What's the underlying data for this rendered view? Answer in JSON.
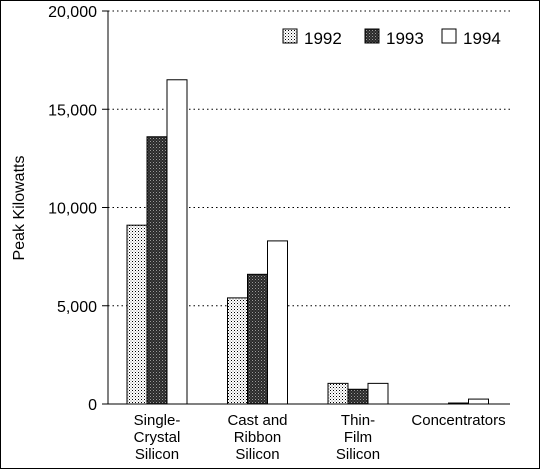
{
  "chart_data": {
    "type": "bar",
    "title": "",
    "xlabel": "",
    "ylabel": "Peak Kilowatts",
    "categories": [
      [
        "Single-",
        "Crystal",
        "Silicon"
      ],
      [
        "Cast and",
        "Ribbon",
        "Silicon"
      ],
      [
        "Thin-",
        "Film",
        "Silicon"
      ],
      [
        "Concentrators"
      ]
    ],
    "series": [
      {
        "name": "1992",
        "values": [
          9100,
          5400,
          1050,
          0
        ],
        "fill": "pattern-dots"
      },
      {
        "name": "1993",
        "values": [
          13600,
          6600,
          750,
          50
        ],
        "fill": "pattern-dark"
      },
      {
        "name": "1994",
        "values": [
          16500,
          8300,
          1050,
          250
        ],
        "fill": "#ffffff"
      }
    ],
    "ylim": [
      0,
      20000
    ],
    "yticks": [
      0,
      5000,
      10000,
      15000,
      20000
    ],
    "ytick_labels": [
      "0",
      "5,000",
      "10,000",
      "15,000",
      "20,000"
    ],
    "grid": "horizontal-dotted",
    "legend_position": "top-right"
  }
}
